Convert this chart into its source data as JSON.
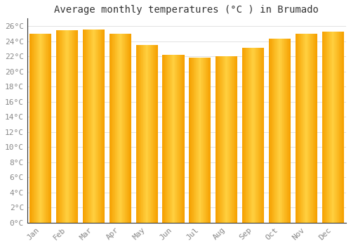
{
  "title": "Average monthly temperatures (°C ) in Brumado",
  "months": [
    "Jan",
    "Feb",
    "Mar",
    "Apr",
    "May",
    "Jun",
    "Jul",
    "Aug",
    "Sep",
    "Oct",
    "Nov",
    "Dec"
  ],
  "values": [
    25.0,
    25.4,
    25.5,
    25.0,
    23.5,
    22.2,
    21.8,
    22.0,
    23.1,
    24.3,
    25.0,
    25.3
  ],
  "bar_color_left": "#F5A000",
  "bar_color_center": "#FFD040",
  "bar_color_right": "#F5A000",
  "ylim": [
    0,
    27
  ],
  "ytick_step": 2,
  "background_color": "#FFFFFF",
  "grid_color": "#DDDDDD",
  "title_fontsize": 10,
  "tick_fontsize": 8,
  "tick_color": "#888888",
  "bar_width": 0.82,
  "n_gradient_strips": 40
}
